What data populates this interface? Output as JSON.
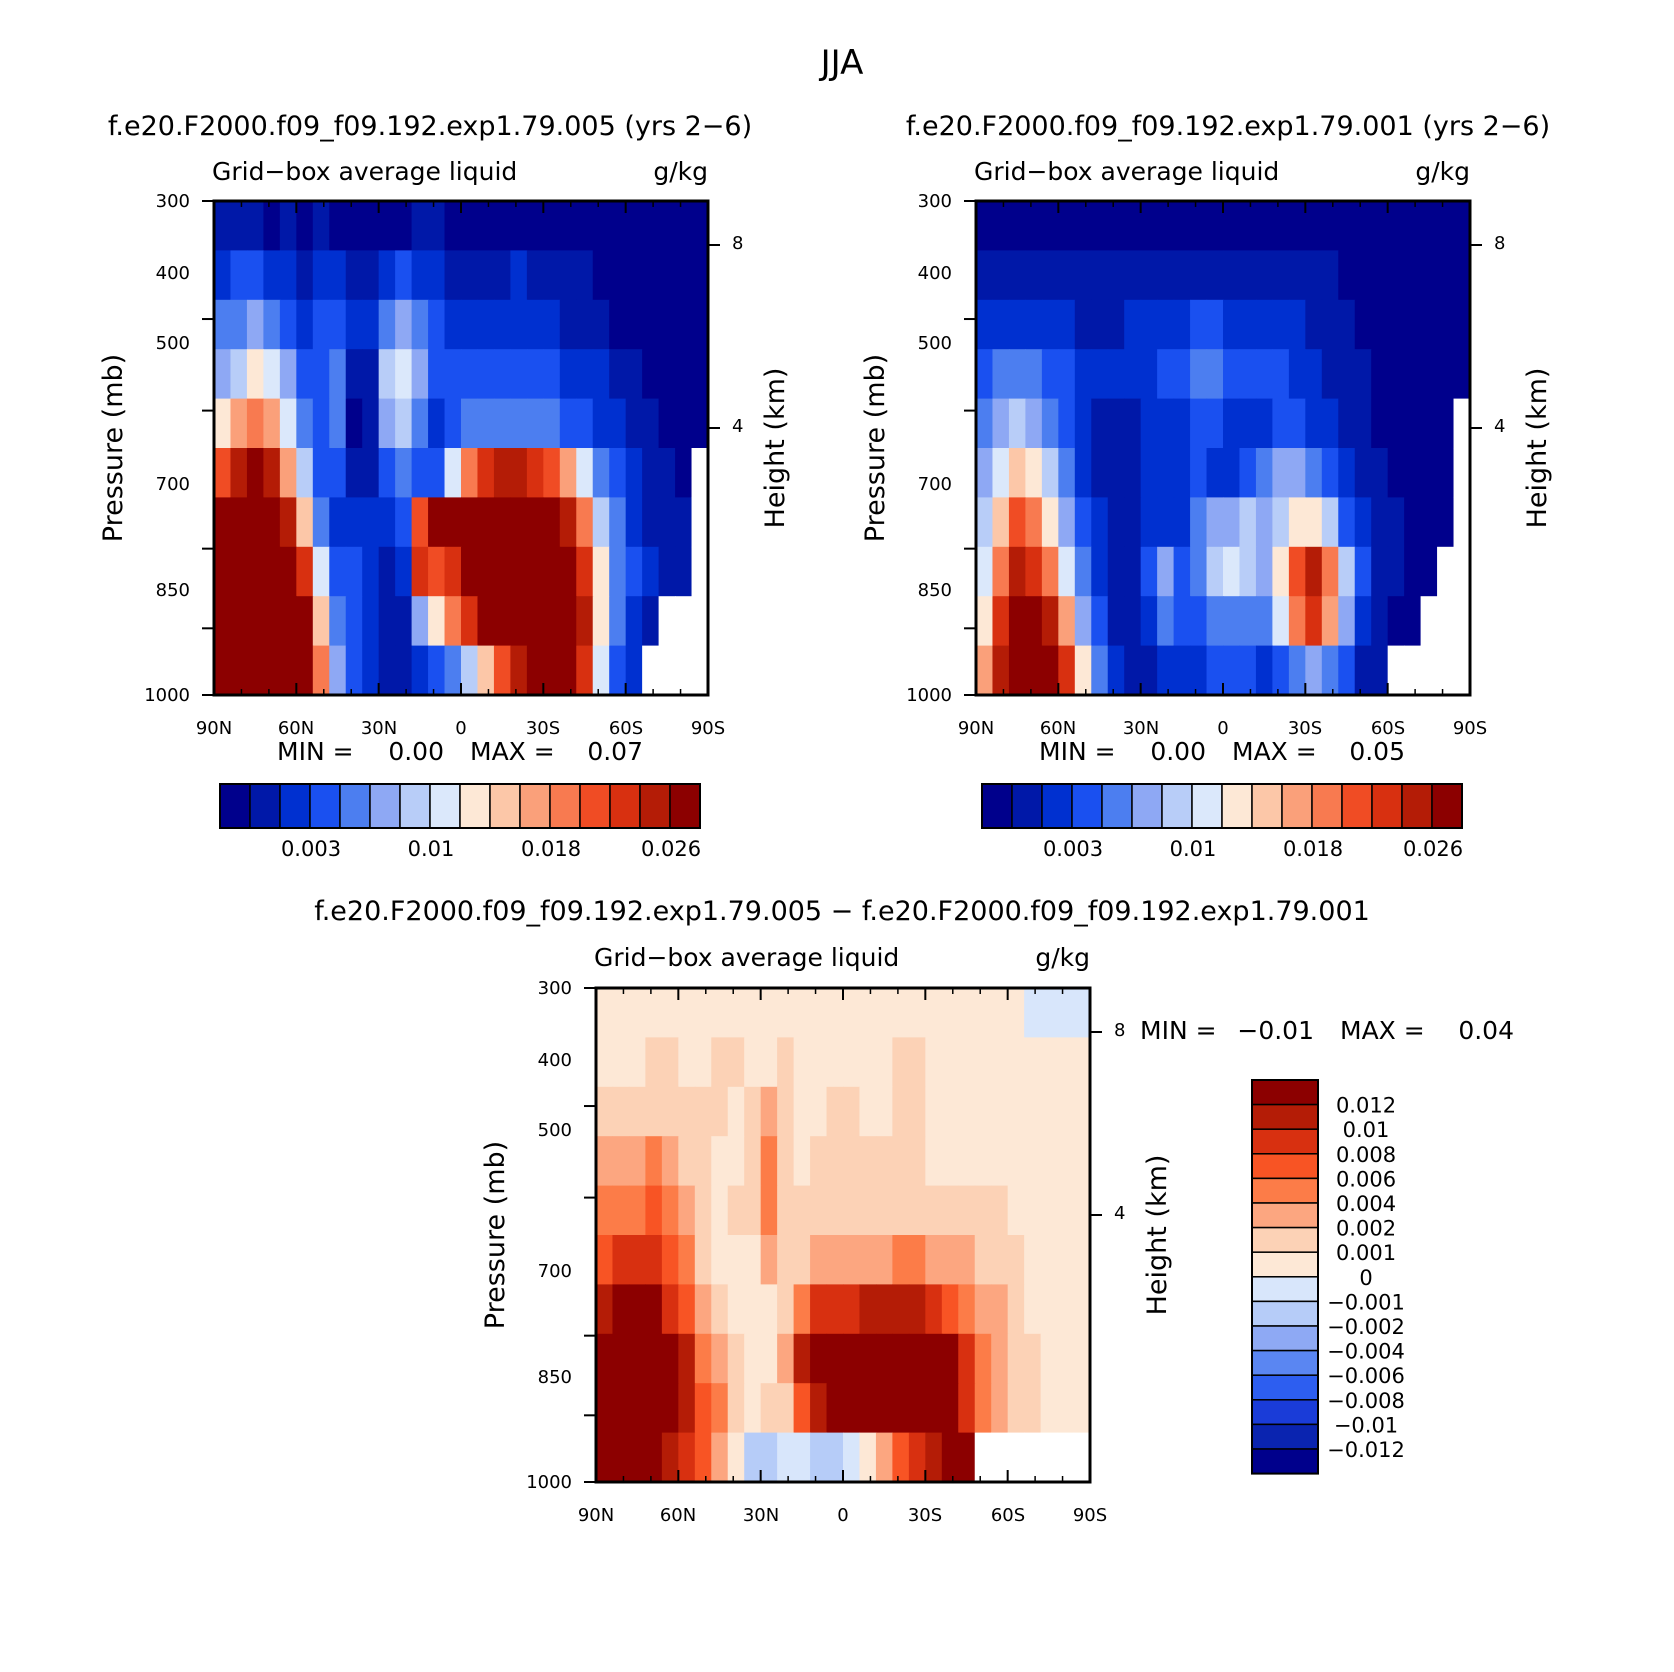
{
  "figure_title": "JJA",
  "diff_title": "f.e20.F2000.f09_f09.192.exp1.79.005 − f.e20.F2000.f09_f09.192.exp1.79.001",
  "abs_levels": [
    0.003,
    0.01,
    0.018,
    0.026
  ],
  "abs_colors": [
    "#00008c",
    "#0018a8",
    "#0030d0",
    "#1a50f0",
    "#4c7ef0",
    "#8ea8f4",
    "#b8cdf8",
    "#dbe8fb",
    "#fde8d6",
    "#fcc7a8",
    "#faa07a",
    "#f87a50",
    "#f04c24",
    "#d83010",
    "#b41c06",
    "#8c0000"
  ],
  "abs_cb_labels": [
    "0.003",
    "0.01",
    "0.018",
    "0.026"
  ],
  "diff_colors": [
    "#8c0000",
    "#b41c06",
    "#d83010",
    "#f85424",
    "#fc7c48",
    "#fca680",
    "#fcd2b6",
    "#fde8d6",
    "#d8e6fb",
    "#b6ccf8",
    "#8ea9f4",
    "#5a86f2",
    "#2d5ef0",
    "#1a3cd8",
    "#0a24b0",
    "#00008c"
  ],
  "diff_cb_labels": [
    "0.012",
    "0.01",
    "0.008",
    "0.006",
    "0.004",
    "0.002",
    "0.001",
    "0",
    "−0.001",
    "−0.002",
    "−0.004",
    "−0.006",
    "−0.008",
    "−0.01",
    "−0.012"
  ],
  "chart_data": [
    {
      "type": "heatmap",
      "title": "f.e20.F2000.f09_f09.192.exp1.79.005 (yrs 2−6)",
      "subtitle_left": "Grid−box average liquid",
      "subtitle_right": "g/kg",
      "xlabel": "",
      "ylabel": "Pressure (mb)",
      "ylabel_right": "Height (km)",
      "x_ticks": [
        "90N",
        "60N",
        "30N",
        "0",
        "30S",
        "60S",
        "90S"
      ],
      "y_ticks": [
        "300",
        "400",
        "500",
        "700",
        "850",
        "1000"
      ],
      "y_right_ticks": [
        "8",
        "4"
      ],
      "xlim": [
        90,
        -90
      ],
      "ylim": [
        1000,
        300
      ],
      "y_scale": "log",
      "stats": {
        "min_label": "MIN =",
        "min": "0.00",
        "max_label": "MAX =",
        "max": "0.07"
      },
      "cells": [
        [
          1,
          1,
          1,
          0,
          1,
          0,
          1,
          0,
          0,
          0,
          0,
          0,
          1,
          1,
          0,
          0,
          0,
          0,
          0,
          0,
          0,
          0,
          0,
          0,
          0,
          0,
          0,
          0,
          0,
          0
        ],
        [
          2,
          3,
          3,
          2,
          2,
          1,
          2,
          2,
          1,
          1,
          2,
          3,
          2,
          2,
          1,
          1,
          1,
          1,
          2,
          1,
          1,
          1,
          1,
          0,
          0,
          0,
          0,
          0,
          0,
          0
        ],
        [
          4,
          4,
          5,
          4,
          3,
          2,
          3,
          3,
          2,
          2,
          4,
          5,
          4,
          3,
          2,
          2,
          2,
          2,
          2,
          2,
          2,
          1,
          1,
          1,
          0,
          0,
          0,
          0,
          0,
          0
        ],
        [
          5,
          6,
          8,
          7,
          5,
          3,
          3,
          4,
          1,
          1,
          6,
          7,
          5,
          3,
          3,
          3,
          3,
          3,
          3,
          3,
          3,
          2,
          2,
          2,
          1,
          1,
          0,
          0,
          0,
          0
        ],
        [
          8,
          10,
          11,
          10,
          7,
          4,
          3,
          4,
          0,
          1,
          5,
          6,
          4,
          2,
          3,
          4,
          4,
          4,
          4,
          4,
          4,
          3,
          3,
          2,
          2,
          1,
          1,
          0,
          0,
          0
        ],
        [
          12,
          14,
          15,
          14,
          10,
          6,
          3,
          3,
          1,
          1,
          3,
          4,
          3,
          3,
          7,
          11,
          13,
          14,
          14,
          13,
          12,
          10,
          7,
          4,
          3,
          2,
          1,
          1,
          0,
          -1
        ],
        [
          15,
          15,
          15,
          15,
          14,
          9,
          4,
          2,
          2,
          2,
          2,
          3,
          12,
          15,
          15,
          15,
          15,
          15,
          15,
          15,
          15,
          14,
          11,
          6,
          4,
          2,
          1,
          1,
          1,
          -1
        ],
        [
          15,
          15,
          15,
          15,
          15,
          13,
          7,
          3,
          3,
          2,
          1,
          2,
          13,
          12,
          13,
          15,
          15,
          15,
          15,
          15,
          15,
          15,
          13,
          8,
          4,
          3,
          2,
          1,
          1,
          -1
        ],
        [
          15,
          15,
          15,
          15,
          15,
          15,
          9,
          4,
          3,
          2,
          1,
          1,
          5,
          8,
          11,
          13,
          15,
          15,
          15,
          15,
          15,
          15,
          14,
          8,
          4,
          2,
          1,
          -1,
          -1,
          -1
        ],
        [
          15,
          15,
          15,
          15,
          15,
          15,
          11,
          5,
          3,
          2,
          1,
          1,
          2,
          3,
          4,
          6,
          9,
          12,
          14,
          15,
          15,
          15,
          13,
          7,
          3,
          2,
          -1,
          -1,
          -1,
          -1
        ]
      ]
    },
    {
      "type": "heatmap",
      "title": "f.e20.F2000.f09_f09.192.exp1.79.001 (yrs 2−6)",
      "subtitle_left": "Grid−box average liquid",
      "subtitle_right": "g/kg",
      "xlabel": "",
      "ylabel": "Pressure (mb)",
      "ylabel_right": "Height (km)",
      "x_ticks": [
        "90N",
        "60N",
        "30N",
        "0",
        "30S",
        "60S",
        "90S"
      ],
      "y_ticks": [
        "300",
        "400",
        "500",
        "700",
        "850",
        "1000"
      ],
      "y_right_ticks": [
        "8",
        "4"
      ],
      "xlim": [
        90,
        -90
      ],
      "ylim": [
        1000,
        300
      ],
      "y_scale": "log",
      "stats": {
        "min_label": "MIN =",
        "min": "0.00",
        "max_label": "MAX =",
        "max": "0.05"
      },
      "cells": [
        [
          0,
          0,
          0,
          0,
          0,
          0,
          0,
          0,
          0,
          0,
          0,
          0,
          0,
          0,
          0,
          0,
          0,
          0,
          0,
          0,
          0,
          0,
          0,
          0,
          0,
          0,
          0,
          0,
          0,
          0
        ],
        [
          1,
          1,
          1,
          1,
          1,
          1,
          1,
          1,
          1,
          1,
          1,
          1,
          1,
          1,
          1,
          1,
          1,
          1,
          1,
          1,
          1,
          1,
          0,
          0,
          0,
          0,
          0,
          0,
          0,
          0
        ],
        [
          2,
          2,
          2,
          2,
          2,
          2,
          1,
          1,
          1,
          2,
          2,
          2,
          2,
          3,
          3,
          2,
          2,
          2,
          2,
          2,
          1,
          1,
          1,
          0,
          0,
          0,
          0,
          0,
          0,
          0
        ],
        [
          3,
          4,
          4,
          4,
          3,
          3,
          2,
          2,
          2,
          2,
          2,
          3,
          3,
          4,
          4,
          3,
          3,
          3,
          3,
          2,
          2,
          1,
          1,
          1,
          0,
          0,
          0,
          0,
          0,
          0
        ],
        [
          4,
          5,
          6,
          5,
          4,
          3,
          2,
          1,
          1,
          1,
          2,
          2,
          2,
          3,
          3,
          2,
          2,
          2,
          3,
          3,
          2,
          2,
          1,
          1,
          0,
          0,
          0,
          0,
          0,
          -1
        ],
        [
          5,
          7,
          9,
          8,
          6,
          4,
          2,
          1,
          1,
          1,
          2,
          2,
          2,
          3,
          2,
          2,
          3,
          4,
          5,
          5,
          4,
          3,
          2,
          1,
          1,
          0,
          0,
          0,
          0,
          -1
        ],
        [
          6,
          9,
          12,
          11,
          8,
          5,
          3,
          2,
          1,
          1,
          2,
          2,
          2,
          4,
          5,
          5,
          6,
          5,
          6,
          8,
          8,
          6,
          3,
          2,
          1,
          1,
          0,
          0,
          0,
          -1
        ],
        [
          7,
          11,
          14,
          13,
          11,
          7,
          4,
          2,
          1,
          1,
          3,
          5,
          3,
          4,
          6,
          7,
          6,
          5,
          8,
          12,
          14,
          11,
          6,
          3,
          1,
          1,
          0,
          0,
          -1,
          -1
        ],
        [
          8,
          13,
          15,
          15,
          14,
          10,
          5,
          3,
          1,
          1,
          2,
          4,
          3,
          3,
          4,
          4,
          4,
          4,
          7,
          11,
          13,
          10,
          5,
          2,
          1,
          0,
          0,
          -1,
          -1,
          -1
        ],
        [
          10,
          14,
          15,
          15,
          15,
          13,
          8,
          4,
          2,
          1,
          1,
          2,
          2,
          2,
          3,
          3,
          3,
          2,
          3,
          4,
          5,
          4,
          3,
          1,
          1,
          -1,
          -1,
          -1,
          -1,
          -1
        ]
      ]
    },
    {
      "type": "heatmap",
      "title": "f.e20.F2000.f09_f09.192.exp1.79.005 − f.e20.F2000.f09_f09.192.exp1.79.001",
      "subtitle_left": "Grid−box average liquid",
      "subtitle_right": "g/kg",
      "xlabel": "",
      "ylabel": "Pressure (mb)",
      "ylabel_right": "Height (km)",
      "x_ticks": [
        "90N",
        "60N",
        "30N",
        "0",
        "30S",
        "60S",
        "90S"
      ],
      "y_ticks": [
        "300",
        "400",
        "500",
        "700",
        "850",
        "1000"
      ],
      "y_right_ticks": [
        "8",
        "4"
      ],
      "xlim": [
        90,
        -90
      ],
      "ylim": [
        1000,
        300
      ],
      "y_scale": "log",
      "stats": {
        "min_label": "MIN =",
        "min": "−0.01",
        "max_label": "MAX =",
        "max": "0.04"
      },
      "cells": [
        [
          7,
          7,
          7,
          7,
          7,
          7,
          7,
          7,
          7,
          7,
          7,
          7,
          7,
          7,
          7,
          7,
          7,
          7,
          7,
          7,
          7,
          7,
          7,
          7,
          7,
          7,
          8,
          8,
          8,
          8
        ],
        [
          7,
          7,
          7,
          6,
          6,
          7,
          7,
          6,
          6,
          7,
          7,
          6,
          7,
          7,
          7,
          7,
          7,
          7,
          6,
          6,
          7,
          7,
          7,
          7,
          7,
          7,
          7,
          7,
          7,
          7
        ],
        [
          6,
          6,
          6,
          6,
          6,
          6,
          6,
          6,
          7,
          6,
          5,
          6,
          7,
          7,
          6,
          6,
          7,
          7,
          6,
          6,
          7,
          7,
          7,
          7,
          7,
          7,
          7,
          7,
          7,
          7
        ],
        [
          5,
          5,
          5,
          4,
          5,
          6,
          6,
          7,
          7,
          6,
          4,
          6,
          7,
          6,
          6,
          6,
          6,
          6,
          6,
          6,
          7,
          7,
          7,
          7,
          7,
          7,
          7,
          7,
          7,
          7
        ],
        [
          4,
          4,
          4,
          3,
          4,
          5,
          6,
          7,
          6,
          6,
          4,
          6,
          6,
          6,
          6,
          6,
          6,
          6,
          6,
          6,
          6,
          6,
          6,
          6,
          6,
          7,
          7,
          7,
          7,
          7
        ],
        [
          3,
          2,
          2,
          2,
          3,
          4,
          6,
          7,
          7,
          7,
          5,
          6,
          6,
          5,
          5,
          5,
          5,
          5,
          4,
          4,
          5,
          5,
          5,
          6,
          6,
          6,
          7,
          7,
          7,
          7
        ],
        [
          1,
          0,
          0,
          0,
          2,
          3,
          5,
          6,
          7,
          7,
          7,
          6,
          4,
          2,
          2,
          2,
          1,
          1,
          1,
          1,
          2,
          3,
          4,
          5,
          5,
          6,
          7,
          7,
          7,
          7
        ],
        [
          0,
          0,
          0,
          0,
          0,
          1,
          4,
          5,
          6,
          7,
          7,
          5,
          1,
          0,
          0,
          0,
          0,
          0,
          0,
          0,
          0,
          0,
          2,
          4,
          5,
          6,
          6,
          7,
          7,
          7
        ],
        [
          0,
          0,
          0,
          0,
          0,
          1,
          3,
          4,
          6,
          7,
          6,
          6,
          3,
          1,
          0,
          0,
          0,
          0,
          0,
          0,
          0,
          0,
          2,
          4,
          5,
          6,
          6,
          7,
          7,
          7
        ],
        [
          0,
          0,
          0,
          0,
          1,
          2,
          3,
          5,
          7,
          9,
          9,
          8,
          8,
          9,
          9,
          8,
          7,
          5,
          3,
          2,
          1,
          0,
          0,
          -1,
          -1,
          -1,
          -1,
          -1,
          -1,
          -1
        ]
      ]
    }
  ]
}
